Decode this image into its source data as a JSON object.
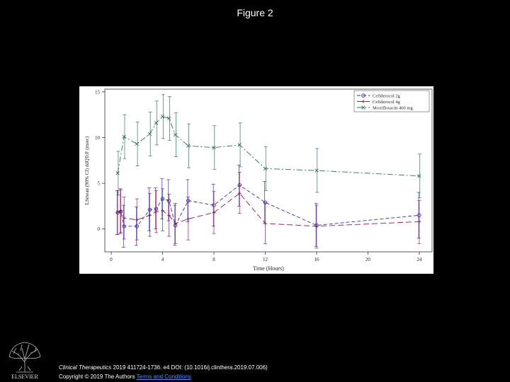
{
  "figure_title": "Figure 2",
  "citation": {
    "journal": "Clinical Therapeutics",
    "details": " 2019 411724-1736. e4 DOI: (10.1016/j.clinthera.2019.07.006)"
  },
  "copyright": {
    "text": "Copyright © 2019 The Authors",
    "link": "Terms and Conditions"
  },
  "logo": {
    "icon": "elsevier-tree-icon",
    "text": "ELSEVIER"
  },
  "chart_data": {
    "type": "line",
    "title": "",
    "xlabel": "Time (Hours)",
    "ylabel": "LSmean (90% CI) ddQTcF (msec)",
    "xlim": [
      -0.5,
      25
    ],
    "ylim": [
      -2.5,
      15.3
    ],
    "xticks": [
      0,
      4,
      8,
      12,
      16,
      20,
      24
    ],
    "yticks": [
      0,
      5,
      10,
      15
    ],
    "legend_position": "top-right",
    "series": [
      {
        "name": "Cefiderocol 2g",
        "color": "#3a2ba0",
        "dash": "5,3",
        "marker": "circle",
        "x": [
          0.5,
          0.75,
          1,
          2,
          3,
          3.5,
          4,
          4.5,
          5,
          6,
          8,
          10,
          12,
          16,
          24
        ],
        "y": [
          1.8,
          1.9,
          0.3,
          0.3,
          2.1,
          2.2,
          3.3,
          3.1,
          0.4,
          3.1,
          2.6,
          4.8,
          2.9,
          0.4,
          1.5
        ],
        "lower": [
          -0.6,
          -0.5,
          -2.0,
          -1.8,
          -0.2,
          0.0,
          1.1,
          0.9,
          -1.8,
          0.8,
          0.3,
          2.5,
          0.6,
          -1.9,
          -1.0
        ],
        "upper": [
          4.2,
          4.4,
          2.6,
          2.4,
          4.5,
          4.5,
          5.5,
          5.4,
          2.6,
          5.4,
          4.9,
          7.0,
          5.2,
          2.8,
          4.0
        ]
      },
      {
        "name": "Cefiderocol 4g",
        "color": "#8b1a5a",
        "dash": "8,4",
        "marker": "plus",
        "x": [
          0.5,
          0.75,
          1,
          2,
          3,
          3.5,
          4,
          4.5,
          5,
          6,
          8,
          10,
          12,
          16,
          24
        ],
        "y": [
          1.8,
          2.0,
          1.2,
          1.0,
          1.5,
          1.9,
          2.0,
          1.5,
          0.6,
          1.1,
          1.8,
          3.9,
          0.6,
          0.3,
          0.8
        ],
        "lower": [
          -0.6,
          -0.4,
          -1.1,
          -1.2,
          -0.8,
          -0.4,
          -0.2,
          -0.8,
          -1.6,
          -1.2,
          -0.5,
          1.7,
          -1.6,
          -2.1,
          -1.6
        ],
        "upper": [
          4.2,
          4.3,
          3.5,
          3.3,
          3.9,
          4.2,
          4.4,
          3.8,
          2.8,
          3.5,
          4.1,
          6.2,
          2.9,
          2.6,
          3.1
        ]
      },
      {
        "name": "Moxifloxacin 400 mg",
        "color": "#2f6e5c",
        "dash": "8,3,2,3",
        "marker": "x",
        "x": [
          0.5,
          1,
          2,
          3,
          3.5,
          4,
          4.5,
          5,
          6,
          8,
          10,
          12,
          16,
          24
        ],
        "y": [
          6.1,
          10.1,
          9.3,
          10.4,
          11.6,
          12.3,
          12.1,
          10.3,
          9.1,
          8.9,
          9.2,
          6.6,
          6.4,
          5.8
        ],
        "lower": [
          3.7,
          7.7,
          6.9,
          8.0,
          9.2,
          9.9,
          9.7,
          7.9,
          6.7,
          6.5,
          6.8,
          4.2,
          4.0,
          3.4
        ],
        "upper": [
          8.5,
          12.5,
          11.7,
          12.8,
          14.0,
          14.7,
          14.5,
          12.7,
          11.5,
          11.3,
          11.6,
          9.0,
          8.8,
          8.2
        ]
      }
    ]
  }
}
